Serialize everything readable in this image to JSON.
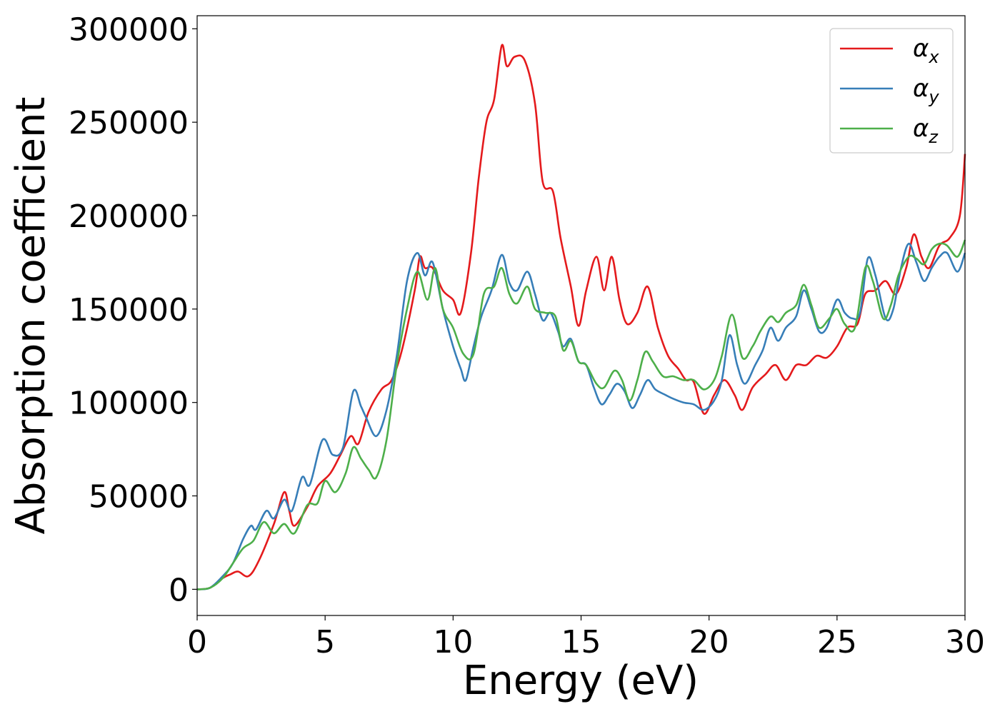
{
  "chart_data": {
    "type": "line",
    "xlabel": "Energy (eV)",
    "ylabel": "Absorption coefficient",
    "xlim": [
      0,
      30
    ],
    "ylim": [
      -14000,
      307000
    ],
    "xticks": [
      0,
      5,
      10,
      15,
      20,
      25,
      30
    ],
    "xtick_labels": [
      "0",
      "5",
      "10",
      "15",
      "20",
      "25",
      "30"
    ],
    "yticks": [
      0,
      50000,
      100000,
      150000,
      200000,
      250000,
      300000
    ],
    "ytick_labels": [
      "0",
      "50000",
      "100000",
      "150000",
      "200000",
      "250000",
      "300000"
    ],
    "grid": false,
    "legend_position": "top-right",
    "series": [
      {
        "name": "α_x",
        "name_base": "α",
        "name_sub": "x",
        "color": "#e41a1c",
        "points": [
          [
            0,
            0
          ],
          [
            0.5,
            800
          ],
          [
            1.0,
            6000
          ],
          [
            1.3,
            8000
          ],
          [
            1.6,
            9500
          ],
          [
            2.0,
            7000
          ],
          [
            2.4,
            15000
          ],
          [
            3.0,
            35000
          ],
          [
            3.4,
            52000
          ],
          [
            3.6,
            42000
          ],
          [
            3.8,
            34000
          ],
          [
            4.3,
            44000
          ],
          [
            4.7,
            55000
          ],
          [
            5.2,
            62000
          ],
          [
            5.6,
            72000
          ],
          [
            6.0,
            82000
          ],
          [
            6.3,
            78000
          ],
          [
            6.7,
            95000
          ],
          [
            7.2,
            107000
          ],
          [
            7.6,
            112000
          ],
          [
            8.0,
            128000
          ],
          [
            8.5,
            160000
          ],
          [
            8.7,
            178000
          ],
          [
            8.9,
            172000
          ],
          [
            9.2,
            172000
          ],
          [
            9.6,
            160000
          ],
          [
            10.0,
            155000
          ],
          [
            10.3,
            148000
          ],
          [
            10.7,
            180000
          ],
          [
            11.0,
            220000
          ],
          [
            11.3,
            250000
          ],
          [
            11.6,
            262000
          ],
          [
            11.9,
            291000
          ],
          [
            12.1,
            280000
          ],
          [
            12.4,
            285000
          ],
          [
            12.8,
            283000
          ],
          [
            13.2,
            260000
          ],
          [
            13.5,
            218000
          ],
          [
            13.9,
            213000
          ],
          [
            14.2,
            188000
          ],
          [
            14.6,
            162000
          ],
          [
            14.9,
            141000
          ],
          [
            15.2,
            160000
          ],
          [
            15.6,
            178000
          ],
          [
            15.9,
            160000
          ],
          [
            16.2,
            178000
          ],
          [
            16.5,
            155000
          ],
          [
            16.8,
            142000
          ],
          [
            17.2,
            148000
          ],
          [
            17.6,
            162000
          ],
          [
            18.0,
            140000
          ],
          [
            18.4,
            125000
          ],
          [
            18.8,
            118000
          ],
          [
            19.1,
            112000
          ],
          [
            19.4,
            111000
          ],
          [
            19.8,
            94000
          ],
          [
            20.2,
            104000
          ],
          [
            20.6,
            112000
          ],
          [
            21.0,
            104000
          ],
          [
            21.3,
            96000
          ],
          [
            21.7,
            108000
          ],
          [
            22.2,
            115000
          ],
          [
            22.6,
            120000
          ],
          [
            23.0,
            112000
          ],
          [
            23.4,
            120000
          ],
          [
            23.8,
            120000
          ],
          [
            24.2,
            125000
          ],
          [
            24.6,
            124000
          ],
          [
            25.0,
            130000
          ],
          [
            25.4,
            140000
          ],
          [
            25.8,
            142000
          ],
          [
            26.1,
            158000
          ],
          [
            26.5,
            160000
          ],
          [
            26.9,
            165000
          ],
          [
            27.3,
            158000
          ],
          [
            27.7,
            172000
          ],
          [
            28.0,
            190000
          ],
          [
            28.3,
            178000
          ],
          [
            28.6,
            172000
          ],
          [
            29.0,
            184000
          ],
          [
            29.4,
            188000
          ],
          [
            29.8,
            200000
          ],
          [
            30.0,
            233000
          ]
        ]
      },
      {
        "name": "α_y",
        "name_base": "α",
        "name_sub": "y",
        "color": "#377eb8",
        "points": [
          [
            0,
            0
          ],
          [
            0.5,
            800
          ],
          [
            1.0,
            7000
          ],
          [
            1.4,
            14000
          ],
          [
            1.8,
            27000
          ],
          [
            2.1,
            34000
          ],
          [
            2.3,
            32000
          ],
          [
            2.7,
            42000
          ],
          [
            3.0,
            38000
          ],
          [
            3.4,
            48000
          ],
          [
            3.7,
            42000
          ],
          [
            4.1,
            60000
          ],
          [
            4.4,
            56000
          ],
          [
            4.9,
            80000
          ],
          [
            5.3,
            72000
          ],
          [
            5.7,
            76000
          ],
          [
            6.1,
            106000
          ],
          [
            6.4,
            98000
          ],
          [
            6.6,
            92000
          ],
          [
            7.0,
            82000
          ],
          [
            7.4,
            96000
          ],
          [
            7.8,
            125000
          ],
          [
            8.2,
            165000
          ],
          [
            8.6,
            180000
          ],
          [
            8.9,
            168000
          ],
          [
            9.2,
            175000
          ],
          [
            9.6,
            150000
          ],
          [
            10.0,
            130000
          ],
          [
            10.3,
            118000
          ],
          [
            10.5,
            112000
          ],
          [
            10.8,
            130000
          ],
          [
            11.1,
            146000
          ],
          [
            11.5,
            160000
          ],
          [
            11.9,
            179000
          ],
          [
            12.2,
            164000
          ],
          [
            12.5,
            160000
          ],
          [
            12.9,
            170000
          ],
          [
            13.2,
            158000
          ],
          [
            13.5,
            144000
          ],
          [
            13.8,
            148000
          ],
          [
            14.1,
            138000
          ],
          [
            14.3,
            130000
          ],
          [
            14.6,
            134000
          ],
          [
            14.9,
            122000
          ],
          [
            15.2,
            120000
          ],
          [
            15.5,
            108000
          ],
          [
            15.8,
            99000
          ],
          [
            16.1,
            104000
          ],
          [
            16.4,
            110000
          ],
          [
            16.7,
            106000
          ],
          [
            17.0,
            97000
          ],
          [
            17.3,
            104000
          ],
          [
            17.6,
            112000
          ],
          [
            17.9,
            107000
          ],
          [
            18.3,
            104000
          ],
          [
            18.6,
            102000
          ],
          [
            19.0,
            100000
          ],
          [
            19.4,
            99000
          ],
          [
            19.8,
            96000
          ],
          [
            20.2,
            101000
          ],
          [
            20.5,
            112000
          ],
          [
            20.8,
            136000
          ],
          [
            21.1,
            120000
          ],
          [
            21.4,
            110000
          ],
          [
            21.8,
            120000
          ],
          [
            22.1,
            128000
          ],
          [
            22.4,
            140000
          ],
          [
            22.7,
            133000
          ],
          [
            23.0,
            140000
          ],
          [
            23.4,
            146000
          ],
          [
            23.7,
            160000
          ],
          [
            24.0,
            150000
          ],
          [
            24.3,
            138000
          ],
          [
            24.6,
            140000
          ],
          [
            25.0,
            155000
          ],
          [
            25.3,
            148000
          ],
          [
            25.6,
            145000
          ],
          [
            25.9,
            148000
          ],
          [
            26.2,
            177000
          ],
          [
            26.5,
            168000
          ],
          [
            26.9,
            145000
          ],
          [
            27.2,
            150000
          ],
          [
            27.5,
            172000
          ],
          [
            27.8,
            185000
          ],
          [
            28.1,
            175000
          ],
          [
            28.4,
            165000
          ],
          [
            28.7,
            172000
          ],
          [
            29.0,
            178000
          ],
          [
            29.3,
            180000
          ],
          [
            29.7,
            170000
          ],
          [
            30.0,
            180000
          ]
        ]
      },
      {
        "name": "α_z",
        "name_base": "α",
        "name_sub": "z",
        "color": "#4daf4a",
        "points": [
          [
            0,
            0
          ],
          [
            0.5,
            800
          ],
          [
            1.0,
            6000
          ],
          [
            1.4,
            14000
          ],
          [
            1.8,
            22000
          ],
          [
            2.2,
            26000
          ],
          [
            2.6,
            36000
          ],
          [
            3.0,
            30000
          ],
          [
            3.4,
            35000
          ],
          [
            3.8,
            30000
          ],
          [
            4.3,
            45000
          ],
          [
            4.7,
            46000
          ],
          [
            5.0,
            58000
          ],
          [
            5.4,
            52000
          ],
          [
            5.8,
            62000
          ],
          [
            6.1,
            76000
          ],
          [
            6.4,
            70000
          ],
          [
            6.7,
            64000
          ],
          [
            7.0,
            60000
          ],
          [
            7.4,
            80000
          ],
          [
            7.8,
            120000
          ],
          [
            8.2,
            150000
          ],
          [
            8.6,
            170000
          ],
          [
            9.0,
            155000
          ],
          [
            9.3,
            172000
          ],
          [
            9.6,
            150000
          ],
          [
            10.0,
            140000
          ],
          [
            10.4,
            126000
          ],
          [
            10.8,
            126000
          ],
          [
            11.2,
            158000
          ],
          [
            11.6,
            162000
          ],
          [
            11.9,
            172000
          ],
          [
            12.2,
            158000
          ],
          [
            12.5,
            153000
          ],
          [
            12.9,
            162000
          ],
          [
            13.2,
            150000
          ],
          [
            13.6,
            148000
          ],
          [
            14.0,
            146000
          ],
          [
            14.3,
            128000
          ],
          [
            14.6,
            133000
          ],
          [
            14.9,
            122000
          ],
          [
            15.2,
            120000
          ],
          [
            15.6,
            110000
          ],
          [
            15.9,
            108000
          ],
          [
            16.3,
            117000
          ],
          [
            16.6,
            112000
          ],
          [
            16.9,
            101000
          ],
          [
            17.2,
            112000
          ],
          [
            17.5,
            127000
          ],
          [
            17.8,
            122000
          ],
          [
            18.2,
            114000
          ],
          [
            18.6,
            114000
          ],
          [
            19.0,
            112000
          ],
          [
            19.4,
            112000
          ],
          [
            19.8,
            107000
          ],
          [
            20.2,
            112000
          ],
          [
            20.5,
            125000
          ],
          [
            20.9,
            147000
          ],
          [
            21.3,
            124000
          ],
          [
            21.7,
            130000
          ],
          [
            22.0,
            138000
          ],
          [
            22.4,
            146000
          ],
          [
            22.7,
            143000
          ],
          [
            23.0,
            148000
          ],
          [
            23.4,
            152000
          ],
          [
            23.7,
            163000
          ],
          [
            24.0,
            152000
          ],
          [
            24.3,
            140000
          ],
          [
            24.7,
            145000
          ],
          [
            25.0,
            150000
          ],
          [
            25.3,
            142000
          ],
          [
            25.7,
            140000
          ],
          [
            26.1,
            172000
          ],
          [
            26.4,
            165000
          ],
          [
            26.8,
            145000
          ],
          [
            27.1,
            152000
          ],
          [
            27.4,
            168000
          ],
          [
            27.8,
            178000
          ],
          [
            28.1,
            177000
          ],
          [
            28.4,
            174000
          ],
          [
            28.7,
            182000
          ],
          [
            29.0,
            185000
          ],
          [
            29.3,
            184000
          ],
          [
            29.7,
            178000
          ],
          [
            30.0,
            187000
          ]
        ]
      }
    ]
  }
}
